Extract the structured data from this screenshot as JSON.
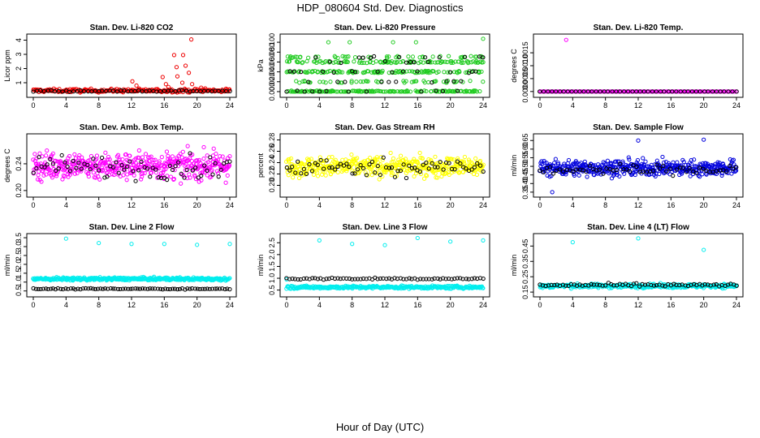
{
  "title": "HDP_080604  Std. Dev. Diagnostics",
  "xlabel": "Hour of Day (UTC)",
  "colors": {
    "red": "#ee0000",
    "green": "#22cc22",
    "magenta": "#ff00ff",
    "yellow": "#ffff00",
    "blue": "#0000dd",
    "cyan": "#00eeee",
    "black": "#000000"
  },
  "chart_data": [
    {
      "type": "scatter",
      "title": "Stan. Dev. Li-820 CO2",
      "ylabel": "Licor ppm",
      "xlim": [
        0,
        24
      ],
      "ylim": [
        0.2,
        4.2
      ],
      "xticks": [
        "0",
        "4",
        "8",
        "12",
        "16",
        "20",
        "24"
      ],
      "yticks": [
        "1",
        "2",
        "3",
        "4"
      ],
      "ytick_values": [
        1,
        2,
        3,
        4
      ],
      "series": [
        {
          "name": "main",
          "color": "#ee0000",
          "base": 0.45,
          "spread": 0.12,
          "count": 220,
          "spikes": [
            [
              12.1,
              1.1
            ],
            [
              12.6,
              0.8
            ],
            [
              15.8,
              1.4
            ],
            [
              16.2,
              0.9
            ],
            [
              16.5,
              0.7
            ],
            [
              17.2,
              2.95
            ],
            [
              17.5,
              2.1
            ],
            [
              17.6,
              1.45
            ],
            [
              18.2,
              1.0
            ],
            [
              18.3,
              2.95
            ],
            [
              18.6,
              2.2
            ],
            [
              19.0,
              1.7
            ],
            [
              19.3,
              4.05
            ],
            [
              19.4,
              0.9
            ],
            [
              20.5,
              0.65
            ],
            [
              21.0,
              0.6
            ]
          ]
        },
        {
          "name": "reference",
          "color": "#000000",
          "base": 0.42,
          "spread": 0.06,
          "count": 55,
          "spikes": []
        }
      ]
    },
    {
      "type": "scatter",
      "title": "Stan. Dev. Li-820 Pressure",
      "ylabel": "kPa",
      "xlim": [
        0,
        24
      ],
      "ylim": [
        -0.005,
        0.11
      ],
      "xticks": [
        "0",
        "4",
        "8",
        "12",
        "16",
        "20",
        "24"
      ],
      "yticks": [
        "0.000",
        "0.020",
        "0.040",
        "0.060",
        "0.080",
        "0.100"
      ],
      "ytick_values": [
        0,
        0.02,
        0.04,
        0.06,
        0.08,
        0.1
      ],
      "series": [
        {
          "name": "main",
          "color": "#22cc22",
          "levels": [
            0,
            0.0,
            0.0,
            0.02,
            0.04,
            0.06,
            0.07,
            0.04,
            0.06
          ],
          "count": 480,
          "spikes": [
            [
              5.1,
              0.1
            ],
            [
              7.7,
              0.1
            ],
            [
              13.0,
              0.1
            ],
            [
              15.8,
              0.1
            ],
            [
              24.0,
              0.107
            ]
          ]
        },
        {
          "name": "reference",
          "color": "#000000",
          "levels": [
            0,
            0.02,
            0.04,
            0.06,
            0.07
          ],
          "count": 55,
          "spikes": []
        }
      ]
    },
    {
      "type": "scatter",
      "title": "Stan. Dev. Li-820 Temp.",
      "ylabel": "degrees C",
      "xlim": [
        0,
        24
      ],
      "ylim": [
        -0.0001,
        0.0021
      ],
      "xticks": [
        "0",
        "4",
        "8",
        "12",
        "16",
        "20",
        "24"
      ],
      "yticks": [
        "0.0000",
        "0.0005",
        "0.0010",
        "0.0015"
      ],
      "ytick_values": [
        0,
        0.0005,
        0.001,
        0.0015
      ],
      "series": [
        {
          "name": "main",
          "color": "#ff00ff",
          "base": 0.0,
          "spread": 0.0,
          "count": 160,
          "spikes": [
            [
              3.2,
              0.002
            ]
          ]
        },
        {
          "name": "reference",
          "color": "#000000",
          "base": 0.0,
          "spread": 0.0,
          "count": 50,
          "spikes": []
        }
      ]
    },
    {
      "type": "scatter",
      "title": "Stan. Dev. Amb. Box Temp.",
      "ylabel": "degrees C",
      "xlim": [
        0,
        24
      ],
      "ylim": [
        0.195,
        0.28
      ],
      "xticks": [
        "0",
        "4",
        "8",
        "12",
        "16",
        "20",
        "24"
      ],
      "yticks": [
        "0.20",
        "0.24"
      ],
      "ytick_values": [
        0.2,
        0.24
      ],
      "series": [
        {
          "name": "main",
          "color": "#ff00ff",
          "base": 0.237,
          "spread": 0.02,
          "count": 460,
          "spikes": []
        },
        {
          "name": "reference",
          "color": "#000000",
          "base": 0.235,
          "spread": 0.017,
          "count": 70,
          "spikes": []
        }
      ]
    },
    {
      "type": "scatter",
      "title": "Stan. Dev. Gas Stream RH",
      "ylabel": "percent",
      "xlim": [
        0,
        24
      ],
      "ylim": [
        0.185,
        0.285
      ],
      "xticks": [
        "0",
        "4",
        "8",
        "12",
        "16",
        "20",
        "24"
      ],
      "yticks": [
        "0.20",
        "0.22",
        "0.24",
        "0.26",
        "0.28"
      ],
      "ytick_values": [
        0.2,
        0.22,
        0.24,
        0.26,
        0.28
      ],
      "series": [
        {
          "name": "main",
          "color": "#ffff00",
          "base": 0.233,
          "spread": 0.017,
          "count": 460,
          "spikes": []
        },
        {
          "name": "reference",
          "color": "#000000",
          "base": 0.232,
          "spread": 0.015,
          "count": 70,
          "spikes": []
        }
      ]
    },
    {
      "type": "scatter",
      "title": "Stan. Dev. Sample Flow",
      "ylabel": "ml/min",
      "xlim": [
        0,
        24
      ],
      "ylim": [
        0.34,
        0.67
      ],
      "xticks": [
        "0",
        "4",
        "8",
        "12",
        "16",
        "20",
        "24"
      ],
      "yticks": [
        "0.35",
        "0.40",
        "0.45",
        "0.50",
        "0.55",
        "0.60",
        "0.65"
      ],
      "ytick_values": [
        0.35,
        0.4,
        0.45,
        0.5,
        0.55,
        0.6,
        0.65
      ],
      "series": [
        {
          "name": "main",
          "color": "#0000dd",
          "base": 0.49,
          "spread": 0.045,
          "count": 460,
          "spikes": [
            [
              12.0,
              0.65
            ],
            [
              20.0,
              0.655
            ],
            [
              1.5,
              0.35
            ]
          ]
        },
        {
          "name": "reference",
          "color": "#000000",
          "base": 0.48,
          "spread": 0.03,
          "count": 60,
          "spikes": []
        }
      ]
    },
    {
      "type": "scatter",
      "title": "Stan. Dev. Line 2 Flow",
      "ylabel": "ml/min",
      "xlim": [
        0,
        24
      ],
      "ylim": [
        0.35,
        3.55
      ],
      "xticks": [
        "0",
        "4",
        "8",
        "12",
        "16",
        "20",
        "24"
      ],
      "yticks": [
        "0.5",
        "1.0",
        "1.5",
        "2.0",
        "2.5",
        "3.0",
        "3.5"
      ],
      "ytick_values": [
        0.5,
        1,
        1.5,
        2,
        2.5,
        3,
        3.5
      ],
      "series": [
        {
          "name": "main",
          "color": "#00eeee",
          "base": 1.18,
          "spread": 0.08,
          "count": 380,
          "spikes": [
            [
              4.0,
              3.45
            ],
            [
              8.0,
              3.2
            ],
            [
              12.0,
              3.15
            ],
            [
              16.0,
              3.15
            ],
            [
              20.0,
              3.1
            ],
            [
              24.0,
              3.15
            ]
          ]
        },
        {
          "name": "reference",
          "color": "#000000",
          "base": 0.62,
          "spread": 0.03,
          "count": 80,
          "spikes": []
        }
      ]
    },
    {
      "type": "scatter",
      "title": "Stan. Dev. Line 3 Flow",
      "ylabel": "ml/min",
      "xlim": [
        0,
        24
      ],
      "ylim": [
        0.35,
        2.75
      ],
      "xticks": [
        "0",
        "4",
        "8",
        "12",
        "16",
        "20",
        "24"
      ],
      "yticks": [
        "0.5",
        "1.0",
        "1.5",
        "2.0",
        "2.5"
      ],
      "ytick_values": [
        0.5,
        1,
        1.5,
        2,
        2.5
      ],
      "series": [
        {
          "name": "main",
          "color": "#00eeee",
          "base": 0.62,
          "spread": 0.06,
          "count": 320,
          "spikes": [
            [
              0.0,
              0.95
            ],
            [
              4.0,
              2.6
            ],
            [
              8.0,
              2.45
            ],
            [
              12.0,
              2.4
            ],
            [
              16.0,
              2.7
            ],
            [
              20.0,
              2.55
            ],
            [
              24.0,
              2.6
            ]
          ]
        },
        {
          "name": "reference",
          "color": "#000000",
          "base": 0.98,
          "spread": 0.04,
          "count": 70,
          "spikes": []
        }
      ]
    },
    {
      "type": "scatter",
      "title": "Stan. Dev. Line 4 (LT) Flow",
      "ylabel": "ml/min",
      "xlim": [
        0,
        24
      ],
      "ylim": [
        0.14,
        0.51
      ],
      "xticks": [
        "0",
        "4",
        "8",
        "12",
        "16",
        "20",
        "24"
      ],
      "yticks": [
        "0.15",
        "0.25",
        "0.35",
        "0.45"
      ],
      "ytick_values": [
        0.15,
        0.25,
        0.35,
        0.45
      ],
      "series": [
        {
          "name": "main",
          "color": "#00eeee",
          "base": 0.19,
          "spread": 0.013,
          "count": 320,
          "spikes": [
            [
              4.0,
              0.475
            ],
            [
              12.0,
              0.5
            ],
            [
              20.0,
              0.425
            ]
          ]
        },
        {
          "name": "reference",
          "color": "#000000",
          "base": 0.195,
          "spread": 0.01,
          "count": 70,
          "spikes": []
        }
      ]
    }
  ]
}
